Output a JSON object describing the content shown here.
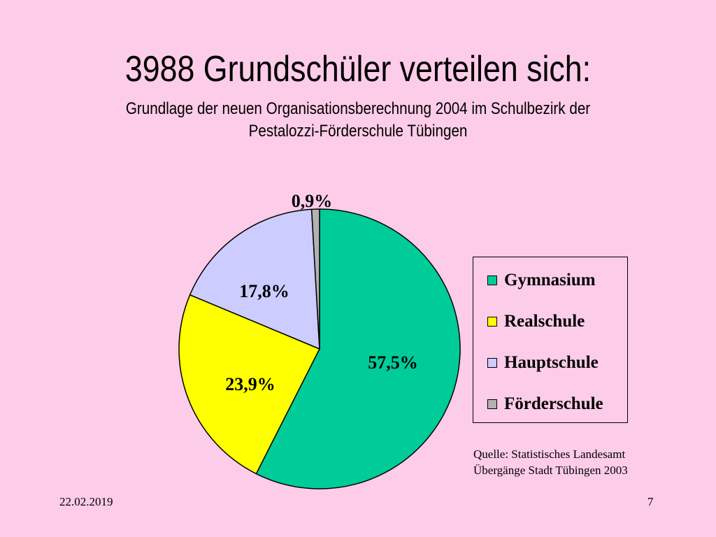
{
  "title": "3988 Grundschüler verteilen sich:",
  "subtitle_line1": "Grundlage der neuen Organisationsberechnung 2004 im Schulbezirk der",
  "subtitle_line2": "Pestalozzi-Förderschule Tübingen",
  "chart_data": {
    "type": "pie",
    "title": "",
    "legend_position": "right",
    "slices": [
      {
        "name": "Gymnasium",
        "value": 57.5,
        "label": "57,5%",
        "color": "#00cc99"
      },
      {
        "name": "Realschule",
        "value": 23.9,
        "label": "23,9%",
        "color": "#ffff00"
      },
      {
        "name": "Hauptschule",
        "value": 17.8,
        "label": "17,8%",
        "color": "#ccccff"
      },
      {
        "name": "Förderschule",
        "value": 0.9,
        "label": "0,9%",
        "color": "#b2b2b2"
      }
    ]
  },
  "source_line1": "Quelle: Statistisches Landesamt",
  "source_line2": "Übergänge Stadt Tübingen 2003",
  "footer": {
    "date": "22.02.2019",
    "page": "7"
  }
}
